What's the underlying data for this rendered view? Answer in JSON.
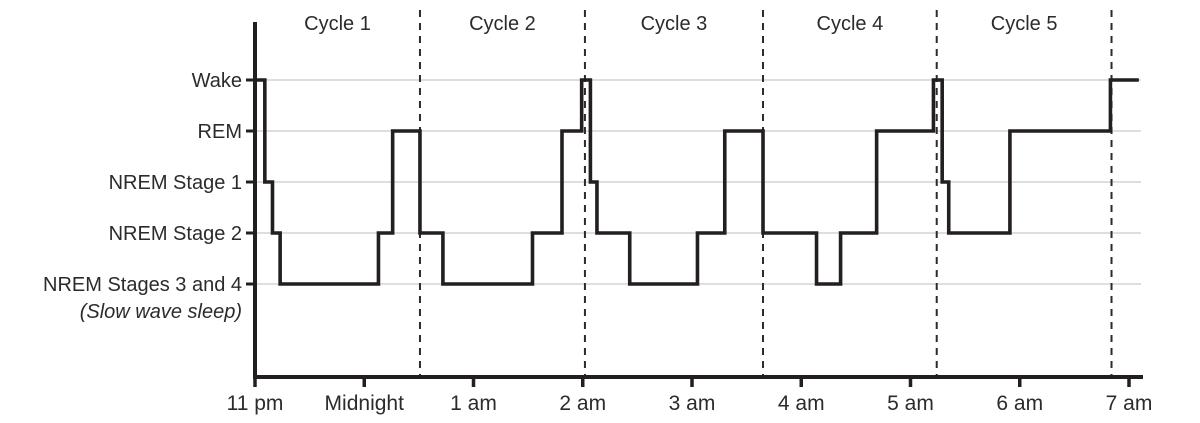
{
  "figure": {
    "description": "Hypnogram of sleep stages across one night, divided into five sleep cycles"
  },
  "chart_data": {
    "type": "line",
    "subtype": "step-hypnogram",
    "title": "",
    "xlabel": "",
    "ylabel": "",
    "x_axis": {
      "tick_labels": [
        "11 pm",
        "Midnight",
        "1 am",
        "2 am",
        "3 am",
        "4 am",
        "5 am",
        "6 am",
        "7 am"
      ],
      "tick_hours": [
        0,
        1,
        2,
        3,
        4,
        5,
        6,
        7,
        8
      ],
      "unit": "hours after 11 pm",
      "range_hours": [
        0,
        8.13
      ]
    },
    "y_axis": {
      "stage_labels": [
        "Wake",
        "REM",
        "NREM Stage 1",
        "NREM Stage 2",
        "NREM Stages 3 and 4"
      ],
      "stage_sublabel": "(Slow wave sleep)",
      "sublabel_for_stage": "NREM Stages 3 and 4",
      "grid": true
    },
    "cycles": [
      {
        "label": "Cycle 1",
        "start_hour": 0.0,
        "end_hour": 1.51
      },
      {
        "label": "Cycle 2",
        "start_hour": 1.51,
        "end_hour": 3.02
      },
      {
        "label": "Cycle 3",
        "start_hour": 3.02,
        "end_hour": 4.65
      },
      {
        "label": "Cycle 4",
        "start_hour": 4.65,
        "end_hour": 6.24
      },
      {
        "label": "Cycle 5",
        "start_hour": 6.24,
        "end_hour": 7.84
      }
    ],
    "cycle_boundary_hours": [
      1.51,
      3.02,
      4.65,
      6.24,
      7.84
    ],
    "segments": [
      {
        "stage": "Wake",
        "from_hour": 0.0,
        "to_hour": 0.09
      },
      {
        "stage": "NREM Stage 1",
        "from_hour": 0.09,
        "to_hour": 0.16
      },
      {
        "stage": "NREM Stage 2",
        "from_hour": 0.16,
        "to_hour": 0.23
      },
      {
        "stage": "NREM Stages 3 and 4",
        "from_hour": 0.23,
        "to_hour": 1.13
      },
      {
        "stage": "NREM Stage 2",
        "from_hour": 1.13,
        "to_hour": 1.26
      },
      {
        "stage": "REM",
        "from_hour": 1.26,
        "to_hour": 1.51
      },
      {
        "stage": "NREM Stage 2",
        "from_hour": 1.51,
        "to_hour": 1.72
      },
      {
        "stage": "NREM Stages 3 and 4",
        "from_hour": 1.72,
        "to_hour": 2.54
      },
      {
        "stage": "NREM Stage 2",
        "from_hour": 2.54,
        "to_hour": 2.81
      },
      {
        "stage": "REM",
        "from_hour": 2.81,
        "to_hour": 2.99
      },
      {
        "stage": "Wake",
        "from_hour": 2.99,
        "to_hour": 3.07
      },
      {
        "stage": "NREM Stage 1",
        "from_hour": 3.07,
        "to_hour": 3.13
      },
      {
        "stage": "NREM Stage 2",
        "from_hour": 3.13,
        "to_hour": 3.43
      },
      {
        "stage": "NREM Stages 3 and 4",
        "from_hour": 3.43,
        "to_hour": 4.05
      },
      {
        "stage": "NREM Stage 2",
        "from_hour": 4.05,
        "to_hour": 4.3
      },
      {
        "stage": "REM",
        "from_hour": 4.3,
        "to_hour": 4.65
      },
      {
        "stage": "NREM Stage 2",
        "from_hour": 4.65,
        "to_hour": 5.14
      },
      {
        "stage": "NREM Stages 3 and 4",
        "from_hour": 5.14,
        "to_hour": 5.36
      },
      {
        "stage": "NREM Stage 2",
        "from_hour": 5.36,
        "to_hour": 5.69
      },
      {
        "stage": "REM",
        "from_hour": 5.69,
        "to_hour": 6.21
      },
      {
        "stage": "Wake",
        "from_hour": 6.21,
        "to_hour": 6.29
      },
      {
        "stage": "NREM Stage 1",
        "from_hour": 6.29,
        "to_hour": 6.35
      },
      {
        "stage": "NREM Stage 2",
        "from_hour": 6.35,
        "to_hour": 6.91
      },
      {
        "stage": "REM",
        "from_hour": 6.91,
        "to_hour": 7.83
      },
      {
        "stage": "Wake",
        "from_hour": 7.83,
        "to_hour": 8.09
      }
    ],
    "colors": {
      "trace": "#231f20",
      "axis": "#231f20",
      "gridline": "#c9cacb",
      "cycle_boundary": "#2b2b2b",
      "text": "#2b2b2b",
      "background": "#ffffff"
    },
    "legend": {
      "visible": false
    }
  }
}
